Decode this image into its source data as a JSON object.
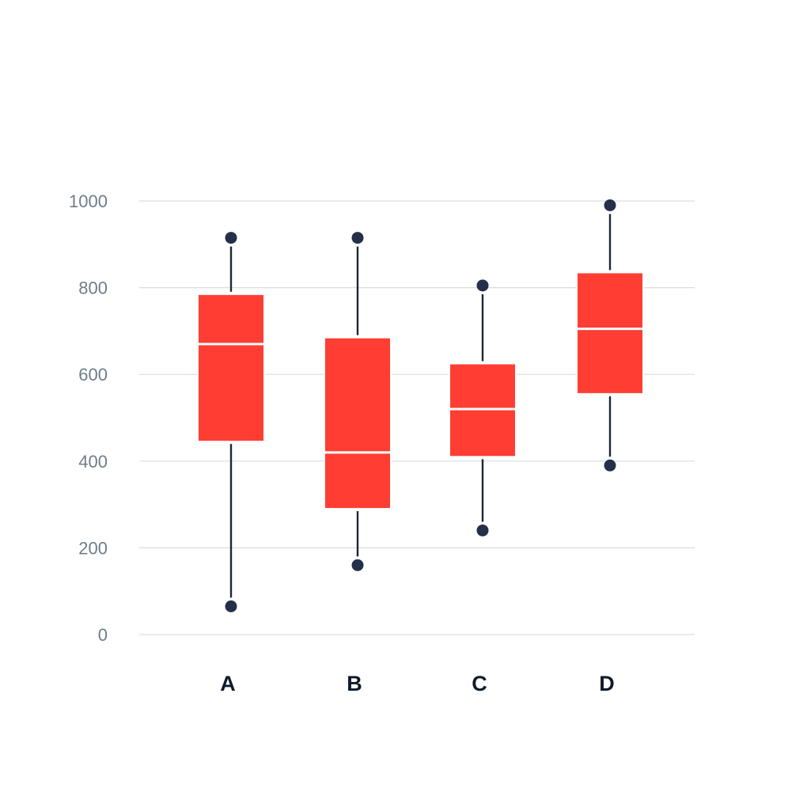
{
  "chart_data": {
    "type": "box",
    "title": "",
    "xlabel": "",
    "ylabel": "",
    "ylim": [
      0,
      1000
    ],
    "y_ticks": [
      0,
      200,
      400,
      600,
      800,
      1000
    ],
    "y_tick_labels": [
      "0",
      "200",
      "400",
      "600",
      "800",
      "1000"
    ],
    "categories": [
      "A",
      "B",
      "C",
      "D"
    ],
    "grid": true,
    "legend": "none",
    "colors": {
      "box": "#ff3d33",
      "whisker": "#1d2736",
      "point": "#243049",
      "median": "#ffffff",
      "grid": "#d9dde1"
    },
    "boxes": [
      {
        "category": "A",
        "min": 65,
        "q1": 445,
        "median": 670,
        "q3": 785,
        "max": 915
      },
      {
        "category": "B",
        "min": 160,
        "q1": 290,
        "median": 420,
        "q3": 685,
        "max": 915
      },
      {
        "category": "C",
        "min": 240,
        "q1": 410,
        "median": 520,
        "q3": 625,
        "max": 805
      },
      {
        "category": "D",
        "min": 390,
        "q1": 555,
        "median": 705,
        "q3": 835,
        "max": 990
      }
    ]
  }
}
